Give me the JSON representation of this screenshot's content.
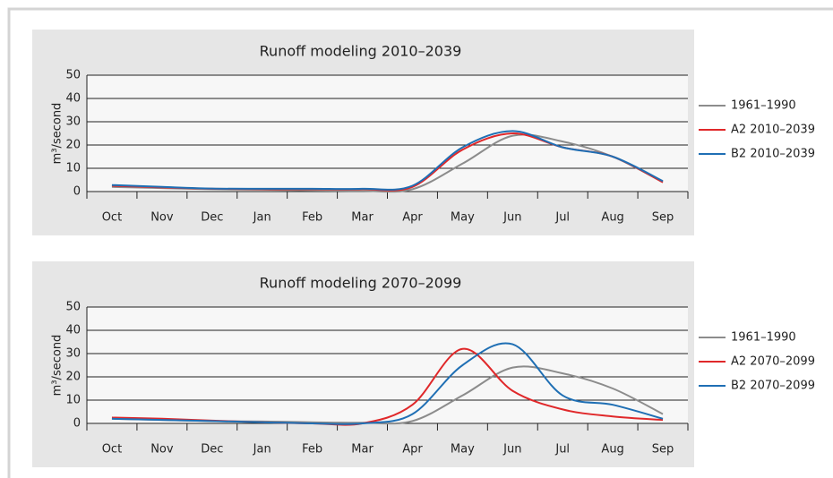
{
  "chart_data": [
    {
      "type": "line",
      "title": "Runoff modeling 2010–2039",
      "y_label": "m³/second",
      "categories": [
        "Oct",
        "Nov",
        "Dec",
        "Jan",
        "Feb",
        "Mar",
        "Apr",
        "May",
        "Jun",
        "Jul",
        "Aug",
        "Sep"
      ],
      "ylim": [
        0,
        50
      ],
      "yticks": [
        0,
        10,
        20,
        30,
        40,
        50
      ],
      "grid": true,
      "series": [
        {
          "name": "1961–1990",
          "color": "#8c8c8c",
          "values": [
            2,
            1.5,
            1,
            0.8,
            0.5,
            0.3,
            1,
            12,
            24,
            21.5,
            15,
            4
          ]
        },
        {
          "name": "A2 2010–2039",
          "color": "#e0282a",
          "values": [
            2.5,
            1.8,
            1.2,
            1,
            1,
            1,
            2,
            18,
            25,
            19,
            15,
            4
          ]
        },
        {
          "name": "B2 2010–2039",
          "color": "#1f6fb4",
          "values": [
            2.8,
            2,
            1.3,
            1.2,
            1.2,
            1.2,
            2.5,
            19,
            26,
            19,
            15,
            4.5
          ]
        }
      ]
    },
    {
      "type": "line",
      "title": "Runoff modeling 2070–2099",
      "y_label": "m³/second",
      "categories": [
        "Oct",
        "Nov",
        "Dec",
        "Jan",
        "Feb",
        "Mar",
        "Apr",
        "May",
        "Jun",
        "Jul",
        "Aug",
        "Sep"
      ],
      "ylim": [
        0,
        50
      ],
      "yticks": [
        0,
        10,
        20,
        30,
        40,
        50
      ],
      "grid": true,
      "series": [
        {
          "name": "1961–1990",
          "color": "#8c8c8c",
          "values": [
            2,
            1.5,
            1,
            0.8,
            0.5,
            0.3,
            1,
            12,
            24,
            21.5,
            15,
            4
          ]
        },
        {
          "name": "A2 2070–2099",
          "color": "#e0282a",
          "values": [
            2.5,
            2,
            1.2,
            0.5,
            0,
            0,
            8,
            32,
            14,
            6,
            3,
            1.5
          ]
        },
        {
          "name": "B2 2070–2099",
          "color": "#1f6fb4",
          "values": [
            2,
            1.5,
            1,
            0.5,
            0,
            0,
            4,
            25,
            34,
            12,
            8,
            2
          ]
        }
      ]
    }
  ]
}
